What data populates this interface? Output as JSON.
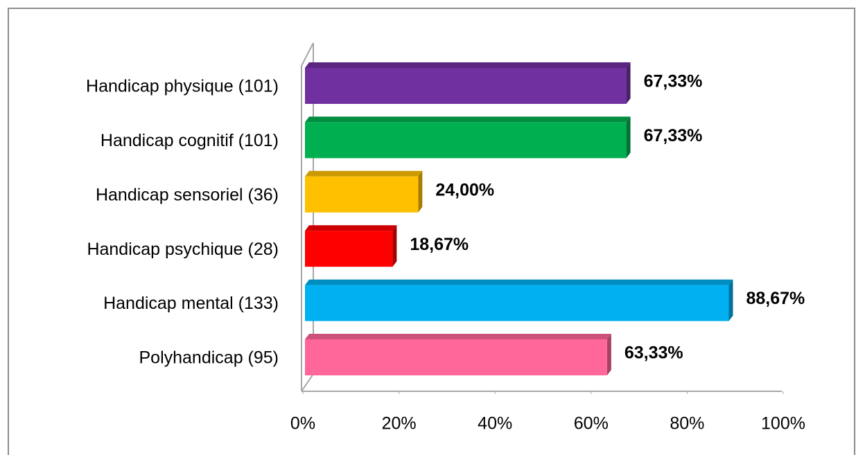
{
  "chart_data": {
    "type": "bar",
    "orientation": "horizontal",
    "categories": [
      "Handicap physique (101)",
      "Handicap cognitif (101)",
      "Handicap sensoriel (36)",
      "Handicap psychique (28)",
      "Handicap mental (133)",
      "Polyhandicap (95)"
    ],
    "values": [
      67.33,
      67.33,
      24.0,
      18.67,
      88.67,
      63.33
    ],
    "value_labels": [
      "67,33%",
      "67,33%",
      "24,00%",
      "18,67%",
      "88,67%",
      "63,33%"
    ],
    "colors": [
      "#7030a0",
      "#00b050",
      "#ffc000",
      "#ff0000",
      "#00b0f0",
      "#ff6699"
    ],
    "xlim": [
      0,
      100
    ],
    "xticks": [
      {
        "value": 0,
        "label": "0%"
      },
      {
        "value": 20,
        "label": "20%"
      },
      {
        "value": 40,
        "label": "40%"
      },
      {
        "value": 60,
        "label": "60%"
      },
      {
        "value": 80,
        "label": "80%"
      },
      {
        "value": 100,
        "label": "100%"
      }
    ],
    "grid": false
  }
}
